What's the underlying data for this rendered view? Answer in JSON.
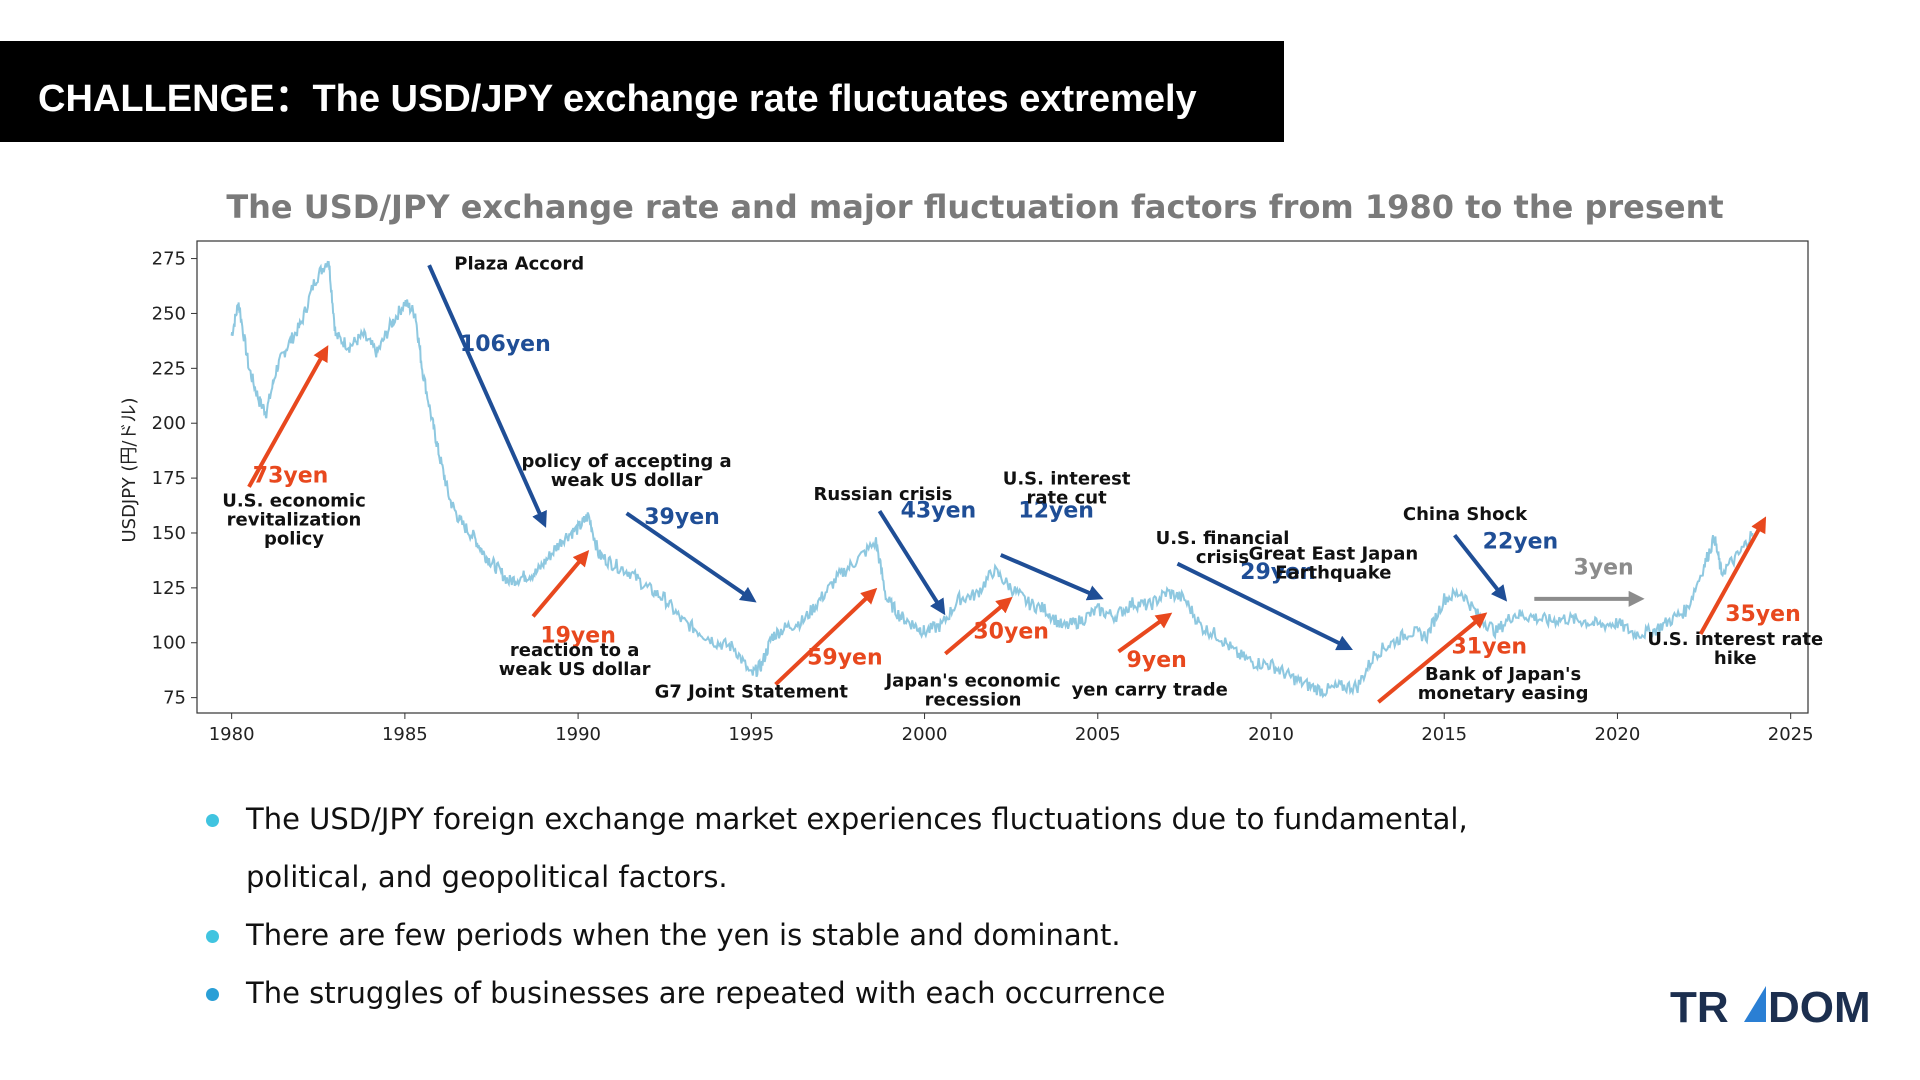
{
  "header": {
    "title": "CHALLENGE：The USD/JPY exchange rate fluctuates extremely"
  },
  "colors": {
    "series": "#8ec8e0",
    "up": "#e8481e",
    "down": "#1f4e96",
    "flat": "#8c8c8c",
    "bullet_light": "#40c4e0",
    "bullet_dark": "#2a9fd6",
    "logo": "#1c2f4f",
    "logo_accent": "#2a7fd4"
  },
  "chart_data": {
    "type": "line",
    "title": "The USD/JPY exchange rate and major fluctuation factors from 1980 to the present",
    "xlabel": "",
    "ylabel": "USDJPY (円/ドル)",
    "xlim": [
      1979,
      2025.5
    ],
    "ylim": [
      68,
      283
    ],
    "x_ticks": [
      1980,
      1985,
      1990,
      1995,
      2000,
      2005,
      2010,
      2015,
      2020,
      2025
    ],
    "y_ticks": [
      75,
      100,
      125,
      150,
      175,
      200,
      225,
      250,
      275
    ],
    "grid": false,
    "series": [
      {
        "x": [
          1980.0,
          1980.2,
          1980.5,
          1980.8,
          1981.0,
          1981.3,
          1981.6,
          1982.0,
          1982.4,
          1982.8,
          1983.0,
          1983.4,
          1983.8,
          1984.2,
          1984.6,
          1985.0,
          1985.3,
          1985.5,
          1985.8,
          1986.0,
          1986.3,
          1986.6,
          1987.0,
          1987.3,
          1987.6,
          1988.0,
          1988.4,
          1988.8,
          1989.2,
          1989.6,
          1990.0,
          1990.3,
          1990.6,
          1991.0,
          1991.5,
          1992.0,
          1992.5,
          1993.0,
          1993.5,
          1994.0,
          1994.5,
          1995.0,
          1995.3,
          1995.6,
          1996.0,
          1996.5,
          1997.0,
          1997.5,
          1998.0,
          1998.6,
          1998.9,
          1999.3,
          1999.7,
          2000.0,
          2000.5,
          2001.0,
          2001.5,
          2002.0,
          2002.5,
          2003.0,
          2003.5,
          2004.0,
          2004.5,
          2005.0,
          2005.5,
          2006.0,
          2006.5,
          2007.0,
          2007.5,
          2008.0,
          2008.5,
          2009.0,
          2009.5,
          2010.0,
          2010.5,
          2011.0,
          2011.5,
          2012.0,
          2012.5,
          2013.0,
          2013.5,
          2014.0,
          2014.5,
          2015.0,
          2015.5,
          2016.0,
          2016.5,
          2017.0,
          2017.5,
          2018.0,
          2018.5,
          2019.0,
          2019.5,
          2020.0,
          2020.5,
          2021.0,
          2021.5,
          2022.0,
          2022.5,
          2022.8,
          2023.0,
          2023.5,
          2023.9
        ],
        "values": [
          240,
          255,
          225,
          210,
          205,
          225,
          235,
          245,
          265,
          275,
          240,
          235,
          240,
          232,
          245,
          255,
          250,
          225,
          200,
          185,
          165,
          155,
          148,
          140,
          135,
          128,
          130,
          132,
          140,
          148,
          152,
          158,
          140,
          136,
          132,
          125,
          120,
          110,
          105,
          100,
          98,
          85,
          90,
          103,
          107,
          110,
          120,
          130,
          137,
          146,
          120,
          112,
          108,
          105,
          108,
          120,
          122,
          133,
          125,
          118,
          115,
          107,
          110,
          115,
          112,
          118,
          117,
          123,
          120,
          107,
          103,
          95,
          91,
          90,
          85,
          81,
          78,
          80,
          80,
          95,
          100,
          105,
          103,
          120,
          123,
          112,
          105,
          113,
          112,
          110,
          111,
          110,
          108,
          109,
          104,
          105,
          110,
          115,
          135,
          148,
          132,
          140,
          150
        ]
      }
    ],
    "arrows": [
      {
        "x1": 1980.5,
        "y1": 171,
        "x2": 1982.7,
        "y2": 233,
        "dir": "up",
        "label": "73yen"
      },
      {
        "x1": 1985.7,
        "y1": 272,
        "x2": 1989.0,
        "y2": 155,
        "dir": "down",
        "label": "106yen"
      },
      {
        "x1": 1988.7,
        "y1": 112,
        "x2": 1990.2,
        "y2": 140,
        "dir": "up",
        "label": "19yen"
      },
      {
        "x1": 1991.4,
        "y1": 159,
        "x2": 1995.0,
        "y2": 120,
        "dir": "down",
        "label": "39yen"
      },
      {
        "x1": 1995.7,
        "y1": 81,
        "x2": 1998.5,
        "y2": 123,
        "dir": "up",
        "label": "59yen"
      },
      {
        "x1": 1998.7,
        "y1": 160,
        "x2": 2000.5,
        "y2": 115,
        "dir": "down",
        "label": "43yen"
      },
      {
        "x1": 2000.6,
        "y1": 95,
        "x2": 2002.4,
        "y2": 119,
        "dir": "up",
        "label": "30yen"
      },
      {
        "x1": 2002.2,
        "y1": 140,
        "x2": 2005.0,
        "y2": 121,
        "dir": "down",
        "label": "12yen"
      },
      {
        "x1": 2005.6,
        "y1": 96,
        "x2": 2007.0,
        "y2": 112,
        "dir": "up",
        "label": "9yen"
      },
      {
        "x1": 2007.3,
        "y1": 136,
        "x2": 2012.2,
        "y2": 98,
        "dir": "down",
        "label": "29yen"
      },
      {
        "x1": 2013.1,
        "y1": 73,
        "x2": 2016.1,
        "y2": 112,
        "dir": "up",
        "label": "31yen"
      },
      {
        "x1": 2015.3,
        "y1": 149,
        "x2": 2016.7,
        "y2": 121,
        "dir": "down",
        "label": "22yen"
      },
      {
        "x1": 2017.6,
        "y1": 120,
        "x2": 2020.6,
        "y2": 120,
        "dir": "flat",
        "label": "3yen"
      },
      {
        "x1": 2022.4,
        "y1": 104,
        "x2": 2024.2,
        "y2": 155,
        "dir": "up",
        "label": "35yen"
      }
    ],
    "annotations": [
      {
        "x": 2022.6,
        "y": 144
      },
      {
        "x": 2022.6,
        "y": 108
      }
    ],
    "labels": [
      {
        "x": 1981.8,
        "y": 162,
        "lines": [
          "U.S. economic",
          "revitalization",
          "policy"
        ]
      },
      {
        "x": 1988.3,
        "y": 270,
        "lines": [
          "Plaza Accord"
        ]
      },
      {
        "x": 1991.4,
        "y": 180,
        "lines": [
          "policy of accepting a",
          "weak US dollar"
        ]
      },
      {
        "x": 1989.9,
        "y": 94,
        "lines": [
          "reaction to a",
          "weak US dollar"
        ]
      },
      {
        "x": 1995.0,
        "y": 75,
        "lines": [
          "G7 Joint Statement"
        ]
      },
      {
        "x": 1998.8,
        "y": 165,
        "lines": [
          "Russian crisis"
        ]
      },
      {
        "x": 2001.4,
        "y": 80,
        "lines": [
          "Japan's economic",
          "recession"
        ]
      },
      {
        "x": 2004.1,
        "y": 172,
        "lines": [
          "U.S. interest",
          "rate cut"
        ]
      },
      {
        "x": 2006.5,
        "y": 76,
        "lines": [
          "yen carry trade"
        ]
      },
      {
        "x": 2008.6,
        "y": 145,
        "lines": [
          "U.S. financial",
          "crisis"
        ]
      },
      {
        "x": 2011.8,
        "y": 138,
        "lines": [
          "Great East Japan",
          "Earthquake"
        ]
      },
      {
        "x": 2015.6,
        "y": 156,
        "lines": [
          "China Shock"
        ]
      },
      {
        "x": 2016.7,
        "y": 83,
        "lines": [
          "Bank of Japan's",
          "monetary easing"
        ]
      },
      {
        "x": 2023.4,
        "y": 99,
        "lines": [
          "U.S. interest rate",
          "hike"
        ]
      }
    ],
    "label_positions": [
      {
        "x": 2003.0,
        "y": 163
      },
      {
        "x": 2015.8,
        "y": 80
      }
    ]
  },
  "bullets": [
    "The USD/JPY foreign exchange market experiences fluctuations due to fundamental, political, and geopolitical factors.",
    "There are few periods when the yen is stable and dominant.",
    "The struggles of businesses are repeated with each occurrence"
  ],
  "logo": {
    "text_left": "TR",
    "text_right": "DOM"
  }
}
